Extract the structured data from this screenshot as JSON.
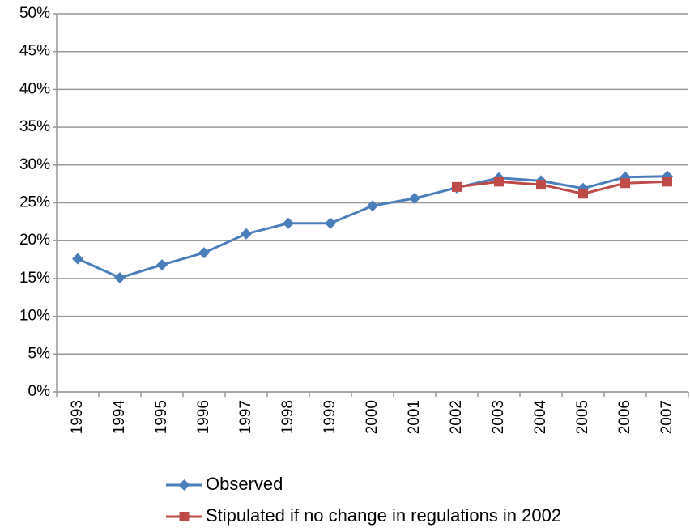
{
  "chart_data": {
    "type": "line",
    "categories": [
      "1993",
      "1994",
      "1995",
      "1996",
      "1997",
      "1998",
      "1999",
      "2000",
      "2001",
      "2002",
      "2003",
      "2004",
      "2005",
      "2006",
      "2007"
    ],
    "series": [
      {
        "name": "Observed",
        "color": "#4a7ebb",
        "marker": "diamond",
        "values": [
          17.6,
          15.1,
          16.8,
          18.4,
          20.9,
          22.3,
          22.3,
          24.6,
          25.6,
          27.0,
          28.3,
          27.9,
          26.9,
          28.4,
          28.5
        ]
      },
      {
        "name": "Stipulated if no change in regulations in 2002",
        "color": "#be4b48",
        "marker": "square",
        "values": [
          null,
          null,
          null,
          null,
          null,
          null,
          null,
          null,
          null,
          27.1,
          27.8,
          27.4,
          26.2,
          27.6,
          27.8
        ]
      }
    ],
    "ylim": [
      0,
      50
    ],
    "yticks": [
      {
        "value": 0,
        "label": "0%"
      },
      {
        "value": 5,
        "label": "5%"
      },
      {
        "value": 10,
        "label": "10%"
      },
      {
        "value": 15,
        "label": "15%"
      },
      {
        "value": 20,
        "label": "20%"
      },
      {
        "value": 25,
        "label": "25%"
      },
      {
        "value": 30,
        "label": "30%"
      },
      {
        "value": 35,
        "label": "35%"
      },
      {
        "value": 40,
        "label": "40%"
      },
      {
        "value": 45,
        "label": "45%"
      },
      {
        "value": 50,
        "label": "50%"
      }
    ],
    "grid": true,
    "legend": "bottom"
  }
}
